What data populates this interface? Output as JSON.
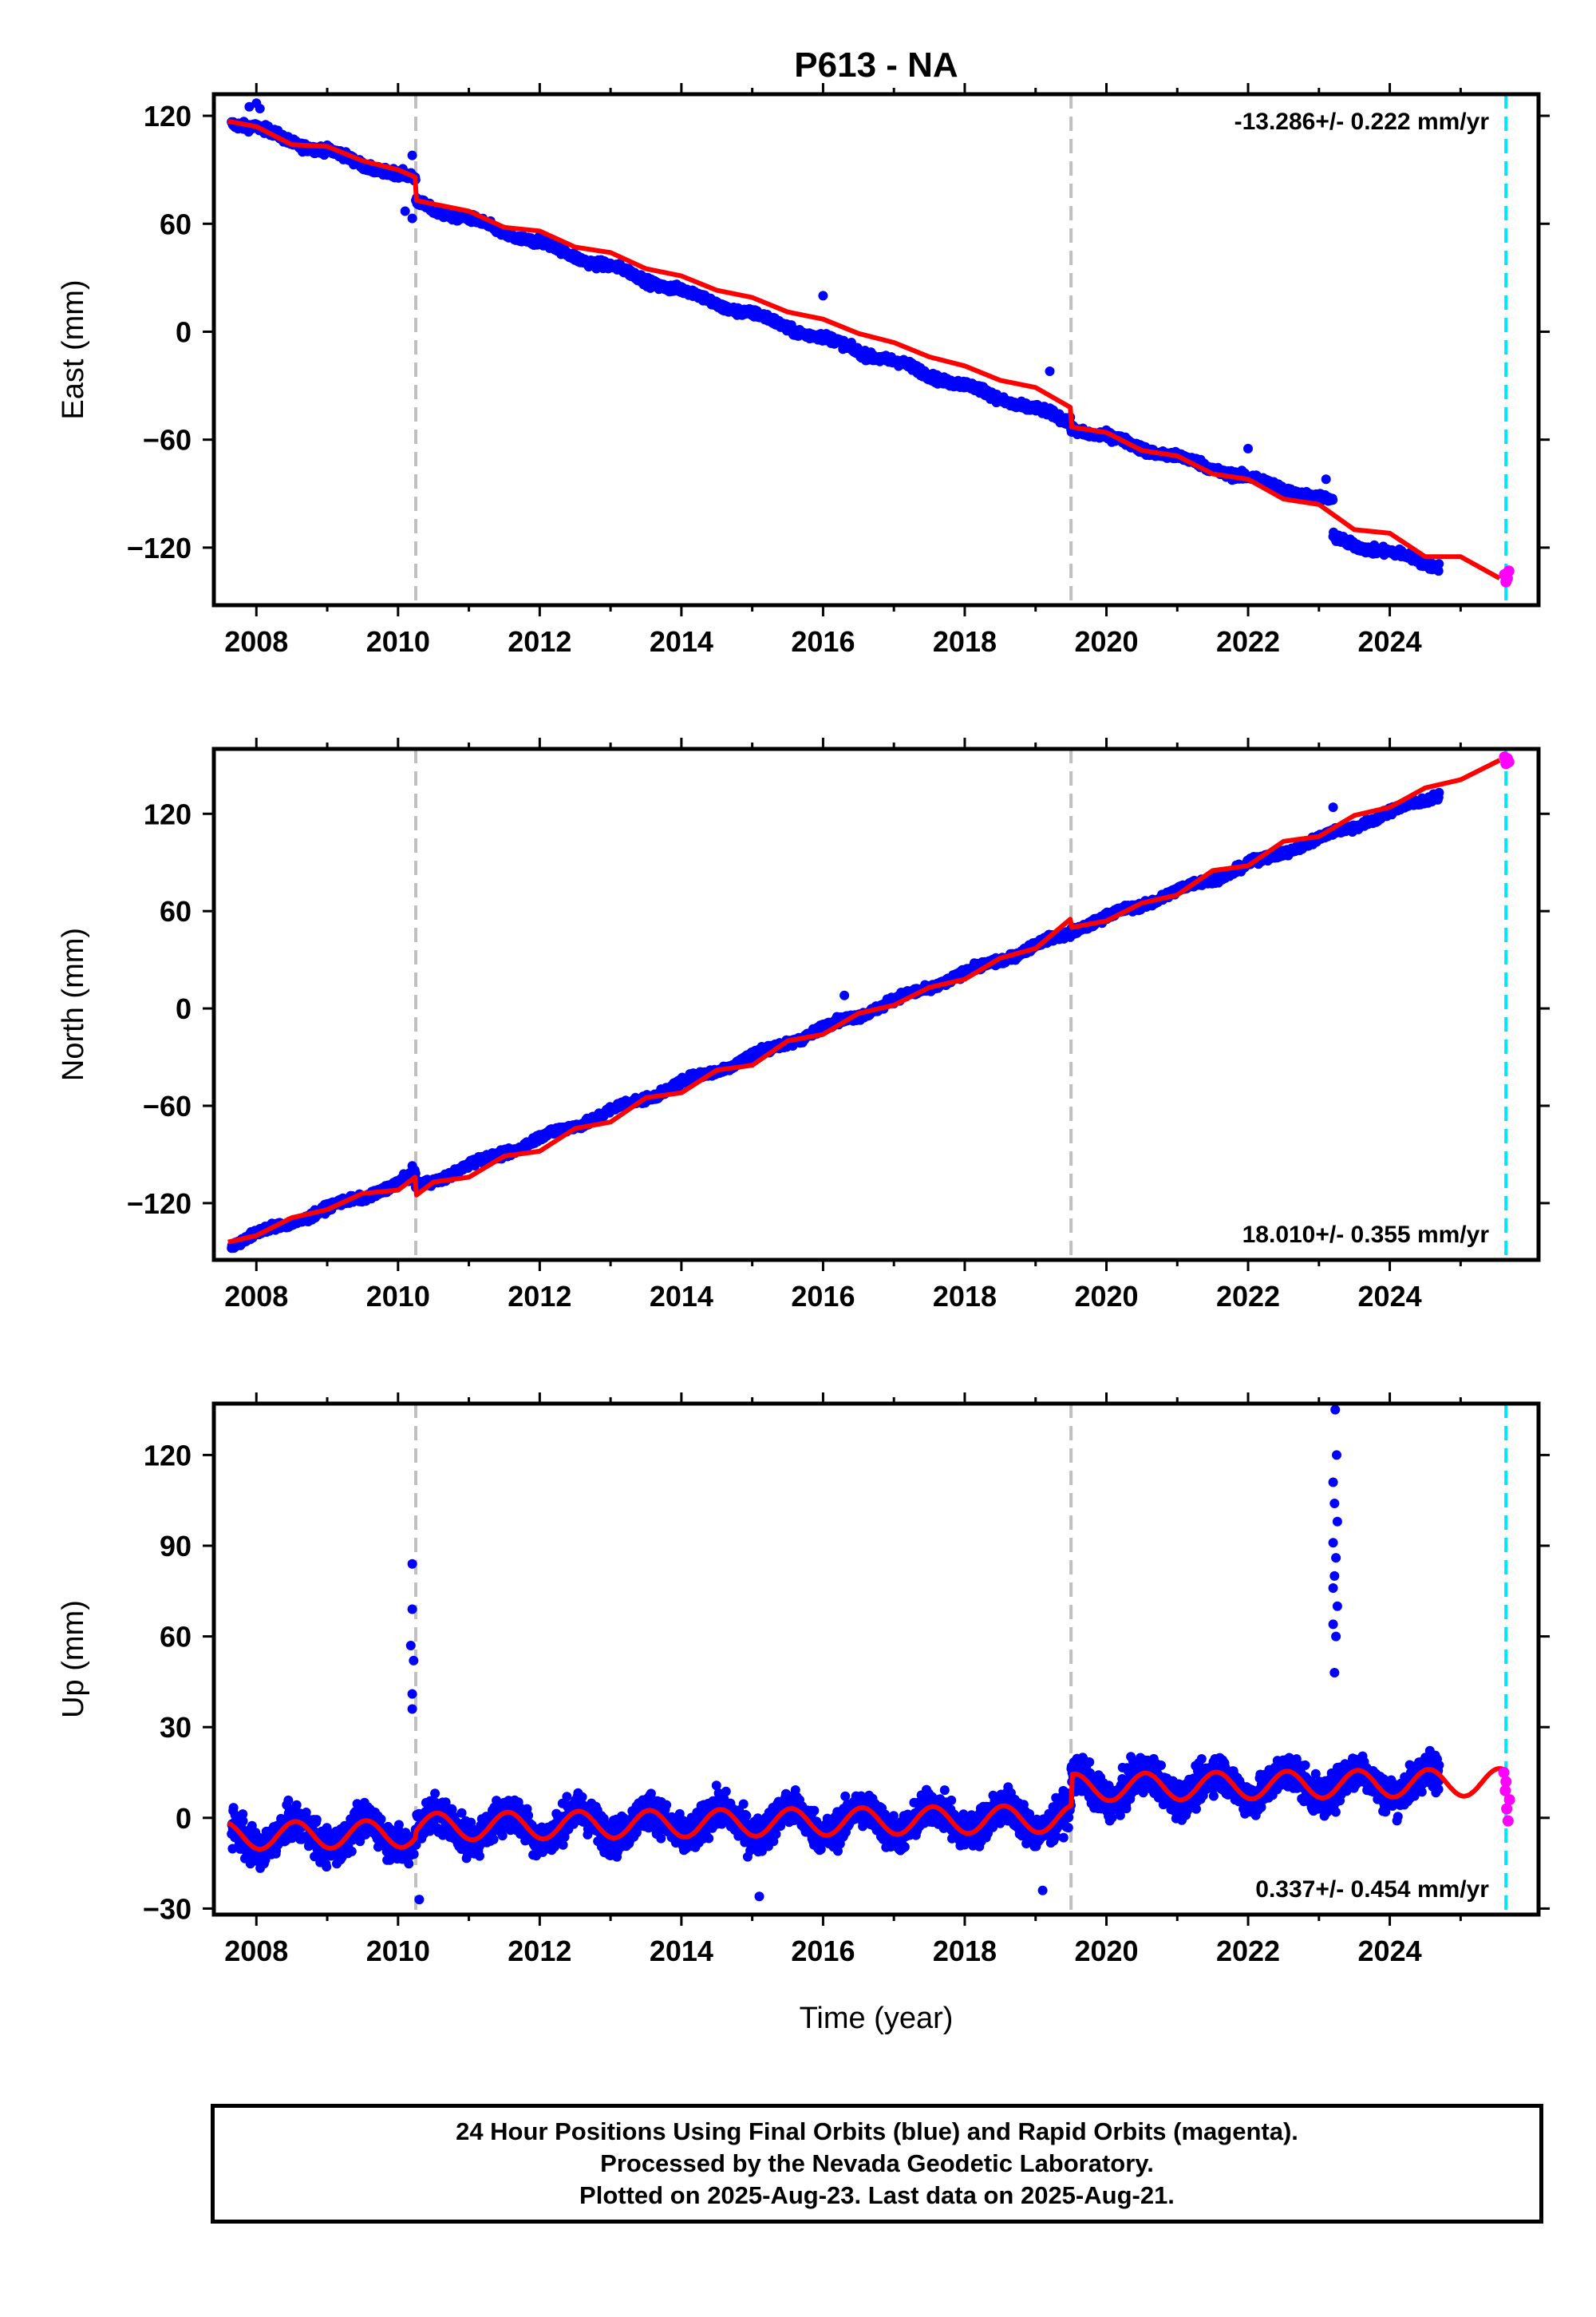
{
  "chart_data": {
    "type": "scatter",
    "title": "P613 - NA",
    "xlabel": "Time (year)",
    "x_ticks": [
      "2008",
      "2010",
      "2012",
      "2014",
      "2016",
      "2018",
      "2020",
      "2022",
      "2024"
    ],
    "xlim": [
      2007.4,
      2026.1
    ],
    "equipment_changes": [
      2010.25,
      2019.5
    ],
    "last_data_marker": 2025.64,
    "colors": {
      "final": "#0000ff",
      "rapid": "#ff00ff",
      "model": "#ff0000",
      "equipment": "#c0c0c0",
      "latest": "#00e5ff"
    },
    "panels": [
      {
        "name": "east",
        "ylabel": "East (mm)",
        "ylim": [
          -152,
          132
        ],
        "y_ticks": [
          120,
          60,
          0,
          -60,
          -120
        ],
        "rate_label": "-13.286+/- 0.222 mm/yr",
        "rate_position": "top-right",
        "model_line": [
          [
            2007.6,
            117
          ],
          [
            2008.0,
            114
          ],
          [
            2008.5,
            104
          ],
          [
            2009.0,
            103
          ],
          [
            2009.5,
            95
          ],
          [
            2010.0,
            90
          ],
          [
            2010.24,
            86
          ],
          [
            2010.26,
            73
          ],
          [
            2010.5,
            71
          ],
          [
            2011.0,
            67
          ],
          [
            2011.5,
            58
          ],
          [
            2012.0,
            56
          ],
          [
            2012.5,
            47
          ],
          [
            2013.0,
            44
          ],
          [
            2013.5,
            35
          ],
          [
            2014.0,
            31
          ],
          [
            2014.5,
            23
          ],
          [
            2015.0,
            19
          ],
          [
            2015.5,
            11
          ],
          [
            2016.0,
            7
          ],
          [
            2016.5,
            -1
          ],
          [
            2017.0,
            -6
          ],
          [
            2017.5,
            -14
          ],
          [
            2018.0,
            -19
          ],
          [
            2018.5,
            -27
          ],
          [
            2019.0,
            -31
          ],
          [
            2019.49,
            -42
          ],
          [
            2019.51,
            -53
          ],
          [
            2020.0,
            -56
          ],
          [
            2020.5,
            -66
          ],
          [
            2021.0,
            -69
          ],
          [
            2021.5,
            -79
          ],
          [
            2022.0,
            -82
          ],
          [
            2022.5,
            -93
          ],
          [
            2023.0,
            -96
          ],
          [
            2023.5,
            -110
          ],
          [
            2024.0,
            -112
          ],
          [
            2024.5,
            -125
          ],
          [
            2025.0,
            -125
          ],
          [
            2025.55,
            -137
          ]
        ],
        "final_ranges": [
          [
            2007.65,
            2010.25,
            117,
            84
          ],
          [
            2010.25,
            2019.5,
            72,
            -50
          ],
          [
            2019.5,
            2023.2,
            -53,
            -95
          ],
          [
            2023.2,
            2024.7,
            -115,
            -130
          ]
        ],
        "outliers": [
          [
            2007.9,
            125
          ],
          [
            2008.0,
            127
          ],
          [
            2008.05,
            124
          ],
          [
            2010.2,
            98
          ],
          [
            2010.2,
            63
          ],
          [
            2010.1,
            67
          ],
          [
            2016.0,
            20
          ],
          [
            2019.2,
            -22
          ],
          [
            2022.0,
            -65
          ],
          [
            2023.1,
            -82
          ]
        ],
        "rapid_points": [
          [
            2025.62,
            -135
          ],
          [
            2025.64,
            -139
          ],
          [
            2025.66,
            -137
          ],
          [
            2025.68,
            -133
          ]
        ]
      },
      {
        "name": "north",
        "ylabel": "North (mm)",
        "ylim": [
          -155,
          160
        ],
        "y_ticks": [
          120,
          60,
          0,
          -60,
          -120
        ],
        "rate_label": "18.010+/- 0.355 mm/yr",
        "rate_position": "bottom-right",
        "model_line": [
          [
            2007.6,
            -144
          ],
          [
            2008.0,
            -140
          ],
          [
            2008.5,
            -129
          ],
          [
            2009.0,
            -124
          ],
          [
            2009.5,
            -114
          ],
          [
            2010.0,
            -112
          ],
          [
            2010.24,
            -104
          ],
          [
            2010.26,
            -115
          ],
          [
            2010.5,
            -107
          ],
          [
            2011.0,
            -104
          ],
          [
            2011.5,
            -91
          ],
          [
            2012.0,
            -88
          ],
          [
            2012.5,
            -74
          ],
          [
            2013.0,
            -70
          ],
          [
            2013.5,
            -55
          ],
          [
            2014.0,
            -52
          ],
          [
            2014.5,
            -38
          ],
          [
            2015.0,
            -35
          ],
          [
            2015.5,
            -20
          ],
          [
            2016.0,
            -16
          ],
          [
            2016.5,
            -3
          ],
          [
            2017.0,
            2
          ],
          [
            2017.5,
            13
          ],
          [
            2018.0,
            18
          ],
          [
            2018.5,
            31
          ],
          [
            2019.0,
            37
          ],
          [
            2019.49,
            55
          ],
          [
            2019.51,
            50
          ],
          [
            2020.0,
            54
          ],
          [
            2020.5,
            65
          ],
          [
            2021.0,
            70
          ],
          [
            2021.5,
            85
          ],
          [
            2022.0,
            88
          ],
          [
            2022.5,
            103
          ],
          [
            2023.0,
            106
          ],
          [
            2023.5,
            119
          ],
          [
            2024.0,
            124
          ],
          [
            2024.5,
            136
          ],
          [
            2025.0,
            141
          ],
          [
            2025.55,
            153
          ]
        ],
        "final_ranges": [
          [
            2007.65,
            2010.25,
            -145,
            -104
          ],
          [
            2010.25,
            2019.5,
            -110,
            47
          ],
          [
            2019.5,
            2024.7,
            48,
            132
          ]
        ],
        "outliers": [
          [
            2010.2,
            -97
          ],
          [
            2016.3,
            8
          ],
          [
            2019.3,
            45
          ],
          [
            2023.2,
            124
          ]
        ],
        "rapid_points": [
          [
            2025.62,
            155
          ],
          [
            2025.64,
            151
          ],
          [
            2025.66,
            154
          ],
          [
            2025.68,
            152
          ]
        ]
      },
      {
        "name": "up",
        "ylabel": "Up (mm)",
        "ylim": [
          -32,
          137
        ],
        "y_ticks": [
          120,
          90,
          60,
          30,
          0,
          -30
        ],
        "rate_label": "0.337+/- 0.454 mm/yr",
        "rate_position": "bottom-right",
        "model_offsets": [
          [
            2007.6,
            -6.0
          ],
          [
            2010.25,
            -3.0
          ],
          [
            2019.5,
            10.0
          ]
        ],
        "model_slope": 0.3,
        "seasonal_amplitude": 4.5,
        "model_end": 2025.6,
        "final_ranges": [
          [
            2007.65,
            2024.7
          ]
        ],
        "outliers": [
          [
            2010.2,
            84
          ],
          [
            2010.2,
            69
          ],
          [
            2010.18,
            57
          ],
          [
            2010.22,
            52
          ],
          [
            2010.2,
            41
          ],
          [
            2010.2,
            36
          ],
          [
            2023.23,
            135
          ],
          [
            2023.25,
            120
          ],
          [
            2023.2,
            111
          ],
          [
            2023.22,
            104
          ],
          [
            2023.26,
            98
          ],
          [
            2023.2,
            91
          ],
          [
            2023.24,
            86
          ],
          [
            2023.22,
            80
          ],
          [
            2023.2,
            76
          ],
          [
            2023.26,
            70
          ],
          [
            2023.2,
            64
          ],
          [
            2023.24,
            60
          ],
          [
            2023.22,
            48
          ],
          [
            2015.1,
            -26
          ],
          [
            2019.1,
            -24
          ],
          [
            2010.3,
            -27
          ]
        ],
        "rapid_points": [
          [
            2025.61,
            15
          ],
          [
            2025.63,
            9
          ],
          [
            2025.65,
            3
          ],
          [
            2025.67,
            -1
          ],
          [
            2025.69,
            6
          ],
          [
            2025.64,
            12
          ]
        ]
      }
    ]
  },
  "footer": {
    "line1": "24 Hour Positions Using Final Orbits (blue) and Rapid Orbits (magenta).",
    "line2": "Processed by the Nevada Geodetic Laboratory.",
    "line3": "Plotted on 2025-Aug-23. Last data on 2025-Aug-21."
  }
}
